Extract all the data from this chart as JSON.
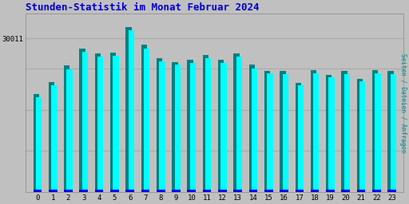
{
  "title": "Stunden-Statistik im Monat Februar 2024",
  "title_color": "#0000cc",
  "title_fontsize": 9,
  "ylabel_right": "Seiten / Dateien / Anfragen",
  "ylabel_right_color": "#008888",
  "ytick_label": "30011",
  "background_color": "#c0c0c0",
  "plot_bg_color": "#c0c0c0",
  "bar_color_cyan": "#00ffff",
  "bar_color_teal": "#008080",
  "bar_color_blue": "#0000ee",
  "categories": [
    0,
    1,
    2,
    3,
    4,
    5,
    6,
    7,
    8,
    9,
    10,
    11,
    12,
    13,
    14,
    15,
    16,
    17,
    18,
    19,
    20,
    21,
    22,
    23
  ],
  "values_cyan": [
    0.575,
    0.645,
    0.745,
    0.85,
    0.82,
    0.825,
    0.98,
    0.87,
    0.79,
    0.77,
    0.78,
    0.81,
    0.78,
    0.82,
    0.75,
    0.72,
    0.715,
    0.645,
    0.72,
    0.695,
    0.715,
    0.67,
    0.72,
    0.715
  ],
  "values_teal": [
    0.595,
    0.665,
    0.765,
    0.87,
    0.84,
    0.845,
    1.0,
    0.89,
    0.81,
    0.785,
    0.8,
    0.83,
    0.8,
    0.84,
    0.77,
    0.735,
    0.735,
    0.66,
    0.74,
    0.71,
    0.735,
    0.685,
    0.74,
    0.735
  ],
  "values_blue": [
    0.015,
    0.015,
    0.015,
    0.015,
    0.015,
    0.015,
    0.018,
    0.015,
    0.015,
    0.015,
    0.018,
    0.015,
    0.018,
    0.015,
    0.015,
    0.015,
    0.015,
    0.018,
    0.018,
    0.018,
    0.018,
    0.018,
    0.015,
    0.015
  ],
  "ylim": [
    0,
    1.08
  ],
  "yticks": [
    0.25,
    0.5,
    0.75,
    0.93
  ],
  "grid_color": "#aaaaaa",
  "font_family": "monospace",
  "bar_width": 0.38
}
